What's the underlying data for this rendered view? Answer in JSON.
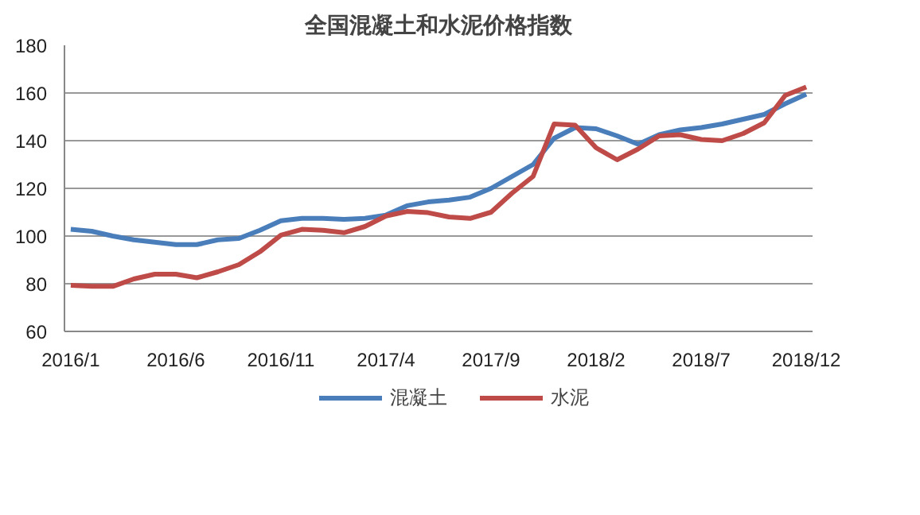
{
  "chart_data": {
    "type": "line",
    "title": "全国混凝土和水泥价格指数",
    "categories": [
      "2016/1",
      null,
      null,
      null,
      null,
      "2016/6",
      null,
      null,
      null,
      null,
      "2016/11",
      null,
      null,
      null,
      null,
      "2017/4",
      null,
      null,
      null,
      null,
      "2017/9",
      null,
      null,
      null,
      null,
      "2018/2",
      null,
      null,
      null,
      null,
      "2018/7",
      null,
      null,
      null,
      null,
      "2018/12"
    ],
    "series": [
      {
        "name": "混凝土",
        "color": "#4a7ebb",
        "values": [
          102.8,
          102,
          100,
          98.4,
          97.4,
          96.4,
          96.4,
          98.4,
          99,
          102.4,
          106.4,
          107.4,
          107.4,
          107,
          107.4,
          108.8,
          112.7,
          114.3,
          115.1,
          116.3,
          120,
          125,
          130,
          141,
          145.5,
          145,
          142,
          138.5,
          142.5,
          144.5,
          145.5,
          147,
          149,
          151,
          155.5,
          159.5
        ]
      },
      {
        "name": "水泥",
        "color": "#be4b48",
        "values": [
          79.3,
          78.9,
          78.9,
          82,
          84,
          84,
          82.5,
          85,
          88,
          93.4,
          100.4,
          102.8,
          102.4,
          101.4,
          104,
          108.4,
          110.3,
          109.8,
          108,
          107.4,
          110,
          118,
          125,
          147,
          146.5,
          137,
          132,
          136.5,
          142,
          142.5,
          140.5,
          140,
          143,
          147.5,
          159,
          162.5
        ]
      }
    ],
    "ylim": [
      60,
      180
    ],
    "yticks": [
      60,
      80,
      100,
      120,
      140,
      160,
      180
    ],
    "grid": "y",
    "legend": "bottom",
    "line_style": "solid"
  }
}
